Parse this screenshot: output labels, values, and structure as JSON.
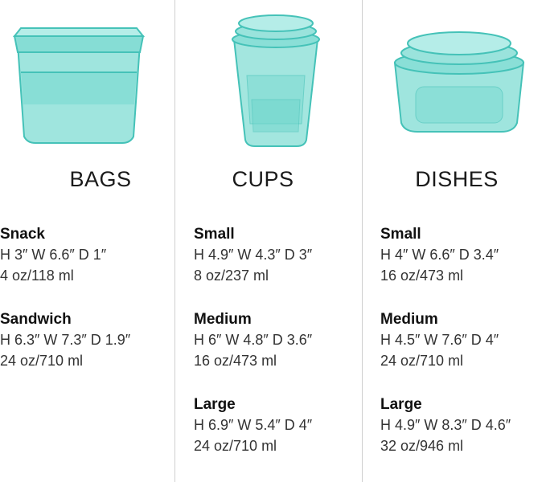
{
  "colors": {
    "teal": "#7fdcd3",
    "teal_edge": "#45c2b8"
  },
  "columns": [
    {
      "title": "BAGS",
      "icon": "bags-image",
      "items": [
        {
          "name": "Snack",
          "dims": "H 3″  W 6.6″  D 1″",
          "volume": "4 oz/118 ml"
        },
        {
          "name": "Sandwich",
          "dims": "H 6.3″  W 7.3″  D 1.9″",
          "volume": "24 oz/710 ml"
        }
      ]
    },
    {
      "title": "CUPS",
      "icon": "cups-image",
      "items": [
        {
          "name": "Small",
          "dims": "H 4.9″  W 4.3″  D 3″",
          "volume": "8 oz/237 ml"
        },
        {
          "name": "Medium",
          "dims": "H 6″  W 4.8″  D 3.6″",
          "volume": "16 oz/473 ml"
        },
        {
          "name": "Large",
          "dims": "H 6.9″  W 5.4″  D 4″",
          "volume": "24 oz/710 ml"
        }
      ]
    },
    {
      "title": "DISHES",
      "icon": "dishes-image",
      "items": [
        {
          "name": "Small",
          "dims": "H 4″  W 6.6″  D 3.4″",
          "volume": "16 oz/473 ml"
        },
        {
          "name": "Medium",
          "dims": "H 4.5″  W 7.6″  D 4″",
          "volume": "24 oz/710 ml"
        },
        {
          "name": "Large",
          "dims": "H 4.9″  W 8.3″  D 4.6″",
          "volume": "32 oz/946 ml"
        }
      ]
    }
  ]
}
